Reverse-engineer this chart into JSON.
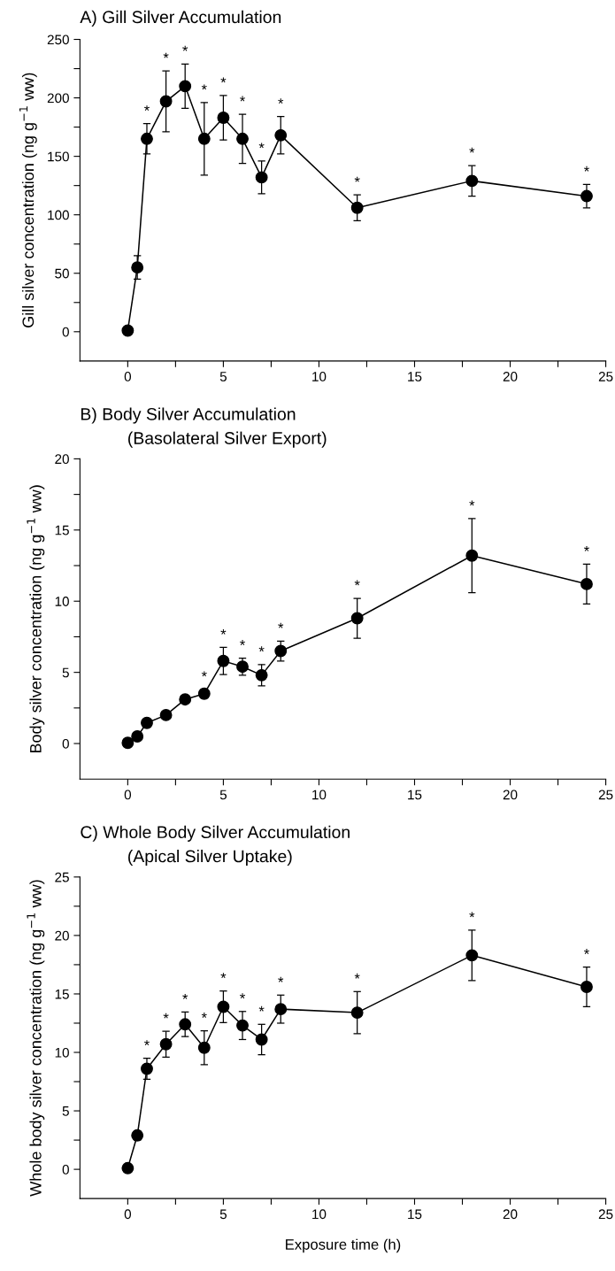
{
  "chart_data": [
    {
      "type": "line",
      "title": "A) Gill Silver Accumulation",
      "ylabel": "Gill silver concentration (ng g$^{−1}$ ww)",
      "x": [
        0,
        0.5,
        1,
        2,
        3,
        4,
        5,
        6,
        7,
        8,
        12,
        18,
        24
      ],
      "series": [
        {
          "color": "#000000",
          "values": [
            1,
            55,
            165,
            197,
            210,
            165,
            183,
            165,
            132,
            168,
            106,
            129,
            116
          ],
          "errors": [
            null,
            10,
            13,
            26,
            19,
            31,
            19,
            21,
            14,
            16,
            11,
            13,
            10
          ]
        }
      ],
      "annotations": [
        {
          "text": "*",
          "x": 1,
          "y": 178
        },
        {
          "text": "*",
          "x": 2,
          "y": 223
        },
        {
          "text": "*",
          "x": 3,
          "y": 229
        },
        {
          "text": "*",
          "x": 4,
          "y": 196
        },
        {
          "text": "*",
          "x": 5,
          "y": 202
        },
        {
          "text": "*",
          "x": 6,
          "y": 186
        },
        {
          "text": "*",
          "x": 7,
          "y": 146
        },
        {
          "text": "*",
          "x": 8,
          "y": 184
        },
        {
          "text": "*",
          "x": 12,
          "y": 117
        },
        {
          "text": "*",
          "x": 18,
          "y": 142
        },
        {
          "text": "*",
          "x": 24,
          "y": 126
        }
      ],
      "xlim": [
        -2.5,
        25
      ],
      "xticks": [
        0,
        {
          "value": 2.5,
          "label": null
        },
        5,
        {
          "value": 7.5,
          "label": null
        },
        10,
        {
          "value": 12.5,
          "label": null
        },
        15,
        {
          "value": 17.5,
          "label": null
        },
        20,
        {
          "value": 22.5,
          "label": null
        },
        25
      ],
      "ylim": [
        -25,
        250
      ],
      "yticks": [
        0,
        {
          "value": 25,
          "label": null
        },
        50,
        {
          "value": 75,
          "label": null
        },
        100,
        {
          "value": 125,
          "label": null
        },
        150,
        {
          "value": 175,
          "label": null
        },
        200,
        {
          "value": 225,
          "label": null
        },
        250
      ],
      "marker": "circle",
      "line_style": "solid",
      "grid": false,
      "legend": false
    },
    {
      "type": "line",
      "title": "B) Body Silver Accumulation",
      "subtitle": "(Basolateral Silver Export)",
      "ylabel": "Body silver concentration (ng g$^{−1}$ ww)",
      "x": [
        0,
        0.5,
        1,
        2,
        3,
        4,
        5,
        6,
        7,
        8,
        12,
        18,
        24
      ],
      "series": [
        {
          "color": "#000000",
          "values": [
            0.05,
            0.5,
            1.45,
            2.0,
            3.1,
            3.5,
            5.8,
            5.4,
            4.8,
            6.5,
            8.8,
            13.2,
            11.2
          ],
          "errors": [
            null,
            null,
            null,
            null,
            null,
            0.3,
            0.95,
            0.6,
            0.75,
            0.7,
            1.4,
            2.6,
            1.4
          ]
        }
      ],
      "annotations": [
        {
          "text": "*",
          "x": 4,
          "y": 3.8
        },
        {
          "text": "*",
          "x": 5,
          "y": 6.75
        },
        {
          "text": "*",
          "x": 6,
          "y": 6.0
        },
        {
          "text": "*",
          "x": 7,
          "y": 5.55
        },
        {
          "text": "*",
          "x": 8,
          "y": 7.2
        },
        {
          "text": "*",
          "x": 12,
          "y": 10.2
        },
        {
          "text": "*",
          "x": 18,
          "y": 15.8
        },
        {
          "text": "*",
          "x": 24,
          "y": 12.6
        }
      ],
      "xlim": [
        -2.5,
        25
      ],
      "xticks": [
        0,
        {
          "value": 2.5,
          "label": null
        },
        5,
        {
          "value": 7.5,
          "label": null
        },
        10,
        {
          "value": 12.5,
          "label": null
        },
        15,
        {
          "value": 17.5,
          "label": null
        },
        20,
        {
          "value": 22.5,
          "label": null
        },
        25
      ],
      "ylim": [
        -2.5,
        20
      ],
      "yticks": [
        0,
        {
          "value": 2.5,
          "label": null
        },
        5,
        {
          "value": 7.5,
          "label": null
        },
        10,
        {
          "value": 12.5,
          "label": null
        },
        15,
        {
          "value": 17.5,
          "label": null
        },
        20
      ],
      "marker": "circle",
      "line_style": "solid",
      "grid": false,
      "legend": false
    },
    {
      "type": "line",
      "title": "C) Whole Body Silver Accumulation",
      "subtitle": "(Apical Silver Uptake)",
      "ylabel": "Whole body silver concentration (ng g$^{−1}$ ww)",
      "xlabel": "Exposure time (h)",
      "x": [
        0,
        0.5,
        1,
        2,
        3,
        4,
        5,
        6,
        7,
        8,
        12,
        18,
        24
      ],
      "series": [
        {
          "color": "#000000",
          "values": [
            0.1,
            2.9,
            8.6,
            10.7,
            12.4,
            10.4,
            13.9,
            12.3,
            11.1,
            13.7,
            13.4,
            18.3,
            15.6
          ],
          "errors": [
            null,
            0.4,
            0.9,
            1.1,
            1.05,
            1.45,
            1.35,
            1.2,
            1.3,
            1.2,
            1.8,
            2.15,
            1.7
          ]
        }
      ],
      "annotations": [
        {
          "text": "*",
          "x": 1,
          "y": 9.5
        },
        {
          "text": "*",
          "x": 2,
          "y": 11.8
        },
        {
          "text": "*",
          "x": 3,
          "y": 13.45
        },
        {
          "text": "*",
          "x": 4,
          "y": 11.85
        },
        {
          "text": "*",
          "x": 5,
          "y": 15.25
        },
        {
          "text": "*",
          "x": 6,
          "y": 13.5
        },
        {
          "text": "*",
          "x": 7,
          "y": 12.4
        },
        {
          "text": "*",
          "x": 8,
          "y": 14.9
        },
        {
          "text": "*",
          "x": 12,
          "y": 15.2
        },
        {
          "text": "*",
          "x": 18,
          "y": 20.45
        },
        {
          "text": "*",
          "x": 24,
          "y": 17.3
        }
      ],
      "xlim": [
        -2.5,
        25
      ],
      "xticks": [
        0,
        {
          "value": 2.5,
          "label": null
        },
        5,
        {
          "value": 7.5,
          "label": null
        },
        10,
        {
          "value": 12.5,
          "label": null
        },
        15,
        {
          "value": 17.5,
          "label": null
        },
        20,
        {
          "value": 22.5,
          "label": null
        },
        25
      ],
      "ylim": [
        -2.5,
        25
      ],
      "yticks": [
        0,
        {
          "value": 2.5,
          "label": null
        },
        5,
        {
          "value": 7.5,
          "label": null
        },
        10,
        {
          "value": 12.5,
          "label": null
        },
        15,
        {
          "value": 17.5,
          "label": null
        },
        20,
        {
          "value": 22.5,
          "label": null
        },
        25
      ],
      "marker": "circle",
      "line_style": "solid",
      "grid": false,
      "legend": false
    }
  ]
}
